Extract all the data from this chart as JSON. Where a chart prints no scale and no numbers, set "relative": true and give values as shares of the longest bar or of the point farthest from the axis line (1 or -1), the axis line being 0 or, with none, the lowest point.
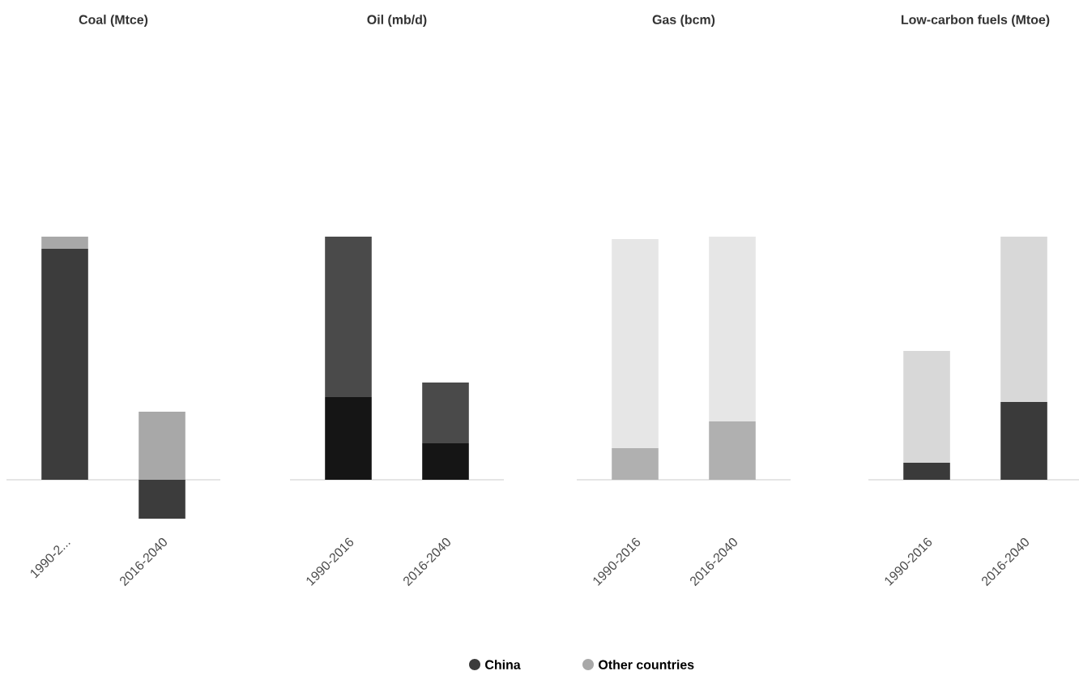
{
  "chart_data": [
    {
      "type": "bar",
      "stacked": true,
      "relative": true,
      "title": "Coal (Mtce)",
      "categories": [
        "1990-2...",
        "2016-2040"
      ],
      "legend": "bottom",
      "series": [
        {
          "name": "China",
          "color": "#3c3c3c",
          "values": [
            0.95,
            -0.16
          ]
        },
        {
          "name": "Other countries",
          "color": "#a8a8a8",
          "values": [
            0.05,
            0.28
          ]
        }
      ]
    },
    {
      "type": "bar",
      "stacked": true,
      "relative": true,
      "title": "Oil (mb/d)",
      "categories": [
        "1990-2016",
        "2016-2040"
      ],
      "series": [
        {
          "colors": [
            "#151515",
            "#151515"
          ],
          "values": [
            0.34,
            0.15
          ]
        },
        {
          "colors": [
            "#4a4a4a",
            "#4a4a4a"
          ],
          "values": [
            0.66,
            0.25
          ]
        }
      ]
    },
    {
      "type": "bar",
      "stacked": true,
      "relative": true,
      "title": "Gas (bcm)",
      "categories": [
        "1990-2016",
        "2016-2040"
      ],
      "series": [
        {
          "colors": [
            "#b0b0b0",
            "#b0b0b0"
          ],
          "values": [
            0.13,
            0.24
          ]
        },
        {
          "colors": [
            "#e6e6e6",
            "#e6e6e6"
          ],
          "values": [
            0.86,
            0.76
          ]
        }
      ]
    },
    {
      "type": "bar",
      "stacked": true,
      "relative": true,
      "title": "Low-carbon fuels (Mtoe)",
      "categories": [
        "1990-2016",
        "2016-2040"
      ],
      "series": [
        {
          "colors": [
            "#3a3a3a",
            "#3a3a3a"
          ],
          "values": [
            0.07,
            0.32
          ]
        },
        {
          "colors": [
            "#d8d8d8",
            "#d8d8d8"
          ],
          "values": [
            0.46,
            0.68
          ]
        }
      ]
    }
  ]
}
